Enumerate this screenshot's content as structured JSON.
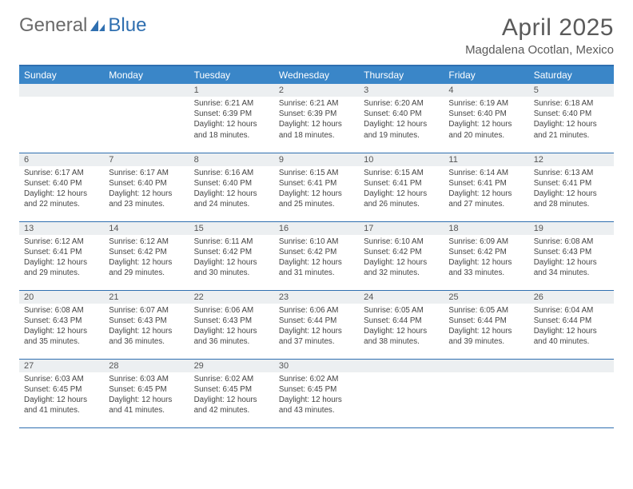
{
  "logo": {
    "general": "General",
    "blue": "Blue"
  },
  "title": "April 2025",
  "subtitle": "Magdalena Ocotlan, Mexico",
  "colors": {
    "header_bg": "#3a86c8",
    "header_border": "#2f6fb0",
    "row_border": "#2f6fb0",
    "daynum_bg": "#eceff1",
    "text": "#444444",
    "title_text": "#5a5a5a",
    "logo_gray": "#6a6a6a",
    "logo_blue": "#2f6fb0",
    "background": "#ffffff"
  },
  "weekdays": [
    "Sunday",
    "Monday",
    "Tuesday",
    "Wednesday",
    "Thursday",
    "Friday",
    "Saturday"
  ],
  "weeks": [
    [
      null,
      null,
      {
        "day": "1",
        "sunrise": "6:21 AM",
        "sunset": "6:39 PM",
        "daylight": "12 hours and 18 minutes."
      },
      {
        "day": "2",
        "sunrise": "6:21 AM",
        "sunset": "6:39 PM",
        "daylight": "12 hours and 18 minutes."
      },
      {
        "day": "3",
        "sunrise": "6:20 AM",
        "sunset": "6:40 PM",
        "daylight": "12 hours and 19 minutes."
      },
      {
        "day": "4",
        "sunrise": "6:19 AM",
        "sunset": "6:40 PM",
        "daylight": "12 hours and 20 minutes."
      },
      {
        "day": "5",
        "sunrise": "6:18 AM",
        "sunset": "6:40 PM",
        "daylight": "12 hours and 21 minutes."
      }
    ],
    [
      {
        "day": "6",
        "sunrise": "6:17 AM",
        "sunset": "6:40 PM",
        "daylight": "12 hours and 22 minutes."
      },
      {
        "day": "7",
        "sunrise": "6:17 AM",
        "sunset": "6:40 PM",
        "daylight": "12 hours and 23 minutes."
      },
      {
        "day": "8",
        "sunrise": "6:16 AM",
        "sunset": "6:40 PM",
        "daylight": "12 hours and 24 minutes."
      },
      {
        "day": "9",
        "sunrise": "6:15 AM",
        "sunset": "6:41 PM",
        "daylight": "12 hours and 25 minutes."
      },
      {
        "day": "10",
        "sunrise": "6:15 AM",
        "sunset": "6:41 PM",
        "daylight": "12 hours and 26 minutes."
      },
      {
        "day": "11",
        "sunrise": "6:14 AM",
        "sunset": "6:41 PM",
        "daylight": "12 hours and 27 minutes."
      },
      {
        "day": "12",
        "sunrise": "6:13 AM",
        "sunset": "6:41 PM",
        "daylight": "12 hours and 28 minutes."
      }
    ],
    [
      {
        "day": "13",
        "sunrise": "6:12 AM",
        "sunset": "6:41 PM",
        "daylight": "12 hours and 29 minutes."
      },
      {
        "day": "14",
        "sunrise": "6:12 AM",
        "sunset": "6:42 PM",
        "daylight": "12 hours and 29 minutes."
      },
      {
        "day": "15",
        "sunrise": "6:11 AM",
        "sunset": "6:42 PM",
        "daylight": "12 hours and 30 minutes."
      },
      {
        "day": "16",
        "sunrise": "6:10 AM",
        "sunset": "6:42 PM",
        "daylight": "12 hours and 31 minutes."
      },
      {
        "day": "17",
        "sunrise": "6:10 AM",
        "sunset": "6:42 PM",
        "daylight": "12 hours and 32 minutes."
      },
      {
        "day": "18",
        "sunrise": "6:09 AM",
        "sunset": "6:42 PM",
        "daylight": "12 hours and 33 minutes."
      },
      {
        "day": "19",
        "sunrise": "6:08 AM",
        "sunset": "6:43 PM",
        "daylight": "12 hours and 34 minutes."
      }
    ],
    [
      {
        "day": "20",
        "sunrise": "6:08 AM",
        "sunset": "6:43 PM",
        "daylight": "12 hours and 35 minutes."
      },
      {
        "day": "21",
        "sunrise": "6:07 AM",
        "sunset": "6:43 PM",
        "daylight": "12 hours and 36 minutes."
      },
      {
        "day": "22",
        "sunrise": "6:06 AM",
        "sunset": "6:43 PM",
        "daylight": "12 hours and 36 minutes."
      },
      {
        "day": "23",
        "sunrise": "6:06 AM",
        "sunset": "6:44 PM",
        "daylight": "12 hours and 37 minutes."
      },
      {
        "day": "24",
        "sunrise": "6:05 AM",
        "sunset": "6:44 PM",
        "daylight": "12 hours and 38 minutes."
      },
      {
        "day": "25",
        "sunrise": "6:05 AM",
        "sunset": "6:44 PM",
        "daylight": "12 hours and 39 minutes."
      },
      {
        "day": "26",
        "sunrise": "6:04 AM",
        "sunset": "6:44 PM",
        "daylight": "12 hours and 40 minutes."
      }
    ],
    [
      {
        "day": "27",
        "sunrise": "6:03 AM",
        "sunset": "6:45 PM",
        "daylight": "12 hours and 41 minutes."
      },
      {
        "day": "28",
        "sunrise": "6:03 AM",
        "sunset": "6:45 PM",
        "daylight": "12 hours and 41 minutes."
      },
      {
        "day": "29",
        "sunrise": "6:02 AM",
        "sunset": "6:45 PM",
        "daylight": "12 hours and 42 minutes."
      },
      {
        "day": "30",
        "sunrise": "6:02 AM",
        "sunset": "6:45 PM",
        "daylight": "12 hours and 43 minutes."
      },
      null,
      null,
      null
    ]
  ],
  "labels": {
    "sunrise_prefix": "Sunrise: ",
    "sunset_prefix": "Sunset: ",
    "daylight_prefix": "Daylight: "
  }
}
